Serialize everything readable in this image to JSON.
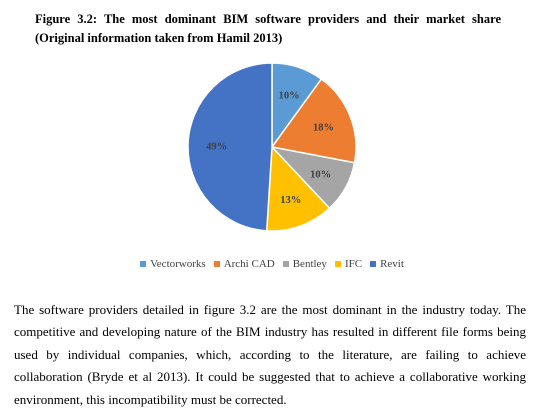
{
  "caption": {
    "line1": "Figure 3.2: The most dominant BIM software providers and their market share",
    "line2": "(Original information taken from Hamil 2013)"
  },
  "chart_data": {
    "type": "pie",
    "title": "",
    "categories": [
      "Vectorworks",
      "Archi CAD",
      "Bentley",
      "IFC",
      "Revit"
    ],
    "values": [
      10,
      18,
      10,
      13,
      49
    ],
    "labels": [
      "10%",
      "18%",
      "10%",
      "13%",
      "49%"
    ],
    "colors": [
      "#5B9BD5",
      "#ED7D31",
      "#A5A5A5",
      "#FFC000",
      "#4472C4"
    ],
    "legend_position": "bottom"
  },
  "paragraph": {
    "lines": [
      "The software providers detailed in figure 3.2 are the most dominant in the industry today. The",
      "competitive and developing nature of the BIM industry has resulted in different file forms being",
      "used by individual companies, which, according to the literature, are failing to achieve",
      "collaboration (Bryde et al 2013). It could be suggested that to achieve a collaborative working",
      "environment, this incompatibility must be corrected."
    ]
  }
}
